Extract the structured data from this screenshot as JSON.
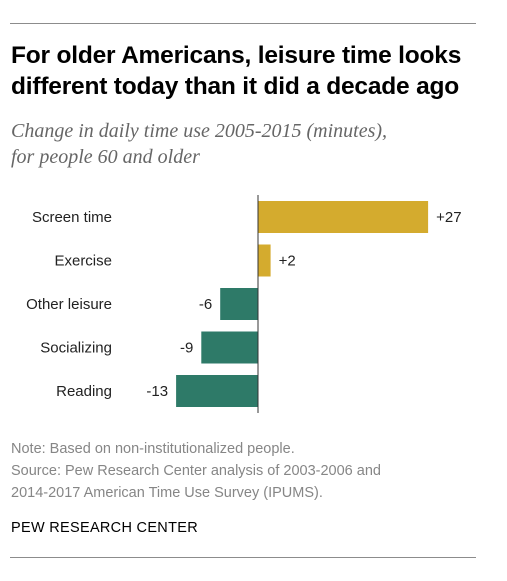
{
  "header": {
    "title_lines": [
      "For older Americans, leisure time looks",
      "different today than it did a decade ago"
    ],
    "subtitle_lines": [
      "Change in daily time use 2005-2015 (minutes),",
      "for people 60 and older"
    ]
  },
  "chart_data": {
    "type": "bar",
    "orientation": "horizontal",
    "categories": [
      "Screen time",
      "Exercise",
      "Other leisure",
      "Socializing",
      "Reading"
    ],
    "values": [
      27,
      2,
      -6,
      -9,
      -13
    ],
    "value_labels": [
      "+27",
      "+2",
      "-6",
      "-9",
      "-13"
    ],
    "title": "For older Americans, leisure time looks different today than it did a decade ago",
    "subtitle": "Change in daily time use 2005-2015 (minutes), for people 60 and older",
    "xlabel": "",
    "ylabel": "",
    "grid": false,
    "legend": "none"
  },
  "colors": {
    "positive": "#d4ab2e",
    "negative": "#2e7a68",
    "axis": "#333333",
    "category_text": "#222222",
    "value_text": "#222222"
  },
  "footer": {
    "note": "Note: Based on non-institutionalized people.",
    "source_lines": [
      "Source: Pew Research Center analysis of 2003-2006 and",
      "2014-2017 American Time Use Survey (IPUMS)."
    ],
    "brand": "PEW RESEARCH CENTER"
  }
}
